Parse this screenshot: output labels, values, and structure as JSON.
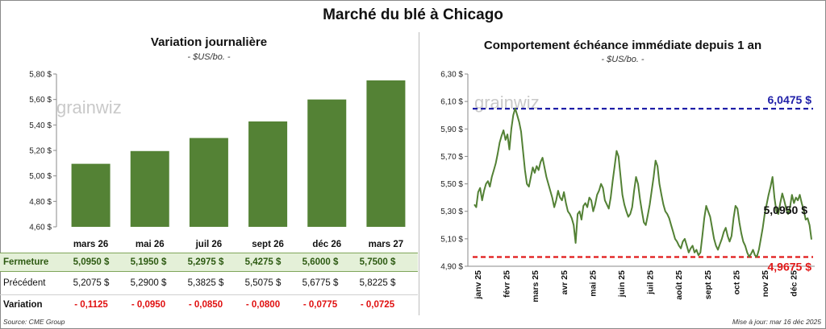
{
  "title": "Marché du blé à Chicago",
  "brand": "grainwiz",
  "left": {
    "title": "Variation journalière",
    "subtitle": "- $US/bo. -"
  },
  "right": {
    "title": "Comportement échéance immédiate depuis 1 an",
    "subtitle": "- $US/bo. -"
  },
  "table": {
    "close_label": "Fermeture",
    "prev_label": "Précédent",
    "var_label": "Variation",
    "close": [
      "5,0950  $",
      "5,1950  $",
      "5,2975  $",
      "5,4275  $",
      "5,6000  $",
      "5,7500  $"
    ],
    "prev": [
      "5,2075  $",
      "5,2900  $",
      "5,3825  $",
      "5,5075  $",
      "5,6775  $",
      "5,8225  $"
    ],
    "var": [
      "- 0,1125",
      "- 0,0950",
      "- 0,0850",
      "- 0,0800",
      "- 0,0775",
      "- 0,0725"
    ]
  },
  "footer": {
    "source": "Source: CME Group",
    "updated": "Mise à jour: mar 16 déc 2025"
  },
  "colors": {
    "bar": "#548235",
    "line": "#538135",
    "high": "#1f1fa8",
    "low": "#e01818"
  },
  "chart_data": [
    {
      "type": "bar",
      "categories": [
        "mars 26",
        "mai 26",
        "juil 26",
        "sept 26",
        "déc 26",
        "mars 27"
      ],
      "values": [
        5.095,
        5.195,
        5.2975,
        5.4275,
        5.6,
        5.75
      ],
      "ylim": [
        4.6,
        5.8
      ],
      "yticks": [
        "4,60 $",
        "4,80 $",
        "5,00 $",
        "5,20 $",
        "5,40 $",
        "5,60 $",
        "5,80 $"
      ],
      "title": "Variation journalière",
      "ylabel": "$US/bo."
    },
    {
      "type": "line",
      "title": "Comportement échéance immédiate depuis 1 an",
      "ylabel": "$US/bo.",
      "ylim": [
        4.9,
        6.3
      ],
      "yticks": [
        "4,90 $",
        "5,10 $",
        "5,30 $",
        "5,50 $",
        "5,70 $",
        "5,90 $",
        "6,10 $",
        "6,30 $"
      ],
      "xticks": [
        "janv 25",
        "févr 25",
        "mars 25",
        "avr 25",
        "mai 25",
        "juin 25",
        "juil 25",
        "août 25",
        "sept 25",
        "oct 25",
        "nov 25",
        "déc 25"
      ],
      "values": [
        5.35,
        5.33,
        5.44,
        5.47,
        5.38,
        5.45,
        5.5,
        5.52,
        5.48,
        5.55,
        5.6,
        5.65,
        5.72,
        5.8,
        5.85,
        5.89,
        5.82,
        5.86,
        5.75,
        5.9,
        6.0,
        6.05,
        6.0,
        5.95,
        5.88,
        5.74,
        5.6,
        5.5,
        5.48,
        5.55,
        5.62,
        5.58,
        5.63,
        5.6,
        5.66,
        5.69,
        5.62,
        5.55,
        5.5,
        5.45,
        5.4,
        5.33,
        5.38,
        5.45,
        5.4,
        5.38,
        5.44,
        5.36,
        5.3,
        5.28,
        5.25,
        5.2,
        5.07,
        5.28,
        5.3,
        5.24,
        5.34,
        5.36,
        5.33,
        5.4,
        5.38,
        5.3,
        5.35,
        5.42,
        5.45,
        5.5,
        5.47,
        5.38,
        5.35,
        5.32,
        5.4,
        5.52,
        5.63,
        5.74,
        5.7,
        5.56,
        5.42,
        5.35,
        5.3,
        5.26,
        5.28,
        5.33,
        5.45,
        5.55,
        5.5,
        5.39,
        5.3,
        5.22,
        5.2,
        5.27,
        5.35,
        5.45,
        5.55,
        5.67,
        5.63,
        5.5,
        5.42,
        5.35,
        5.3,
        5.28,
        5.25,
        5.2,
        5.15,
        5.1,
        5.08,
        5.05,
        5.03,
        5.08,
        5.1,
        5.05,
        5.0,
        5.03,
        5.05,
        5.0,
        5.02,
        4.98,
        5.0,
        5.12,
        5.25,
        5.34,
        5.3,
        5.26,
        5.18,
        5.1,
        5.05,
        5.02,
        5.06,
        5.1,
        5.15,
        5.18,
        5.12,
        5.08,
        5.12,
        5.25,
        5.34,
        5.32,
        5.22,
        5.14,
        5.08,
        5.05,
        5.0,
        4.97,
        4.99,
        5.02,
        4.98,
        4.97,
        5.02,
        5.1,
        5.18,
        5.28,
        5.35,
        5.42,
        5.48,
        5.55,
        5.4,
        5.3,
        5.28,
        5.36,
        5.43,
        5.38,
        5.32,
        5.28,
        5.33,
        5.42,
        5.36,
        5.4,
        5.38,
        5.42,
        5.36,
        5.31,
        5.24,
        5.25,
        5.2,
        5.095
      ],
      "high": {
        "value": 6.0475,
        "label": "6,0475 $"
      },
      "low": {
        "value": 4.9675,
        "label": "4,9675 $"
      },
      "last": {
        "value": 5.095,
        "label": "5,0950 $"
      }
    }
  ]
}
